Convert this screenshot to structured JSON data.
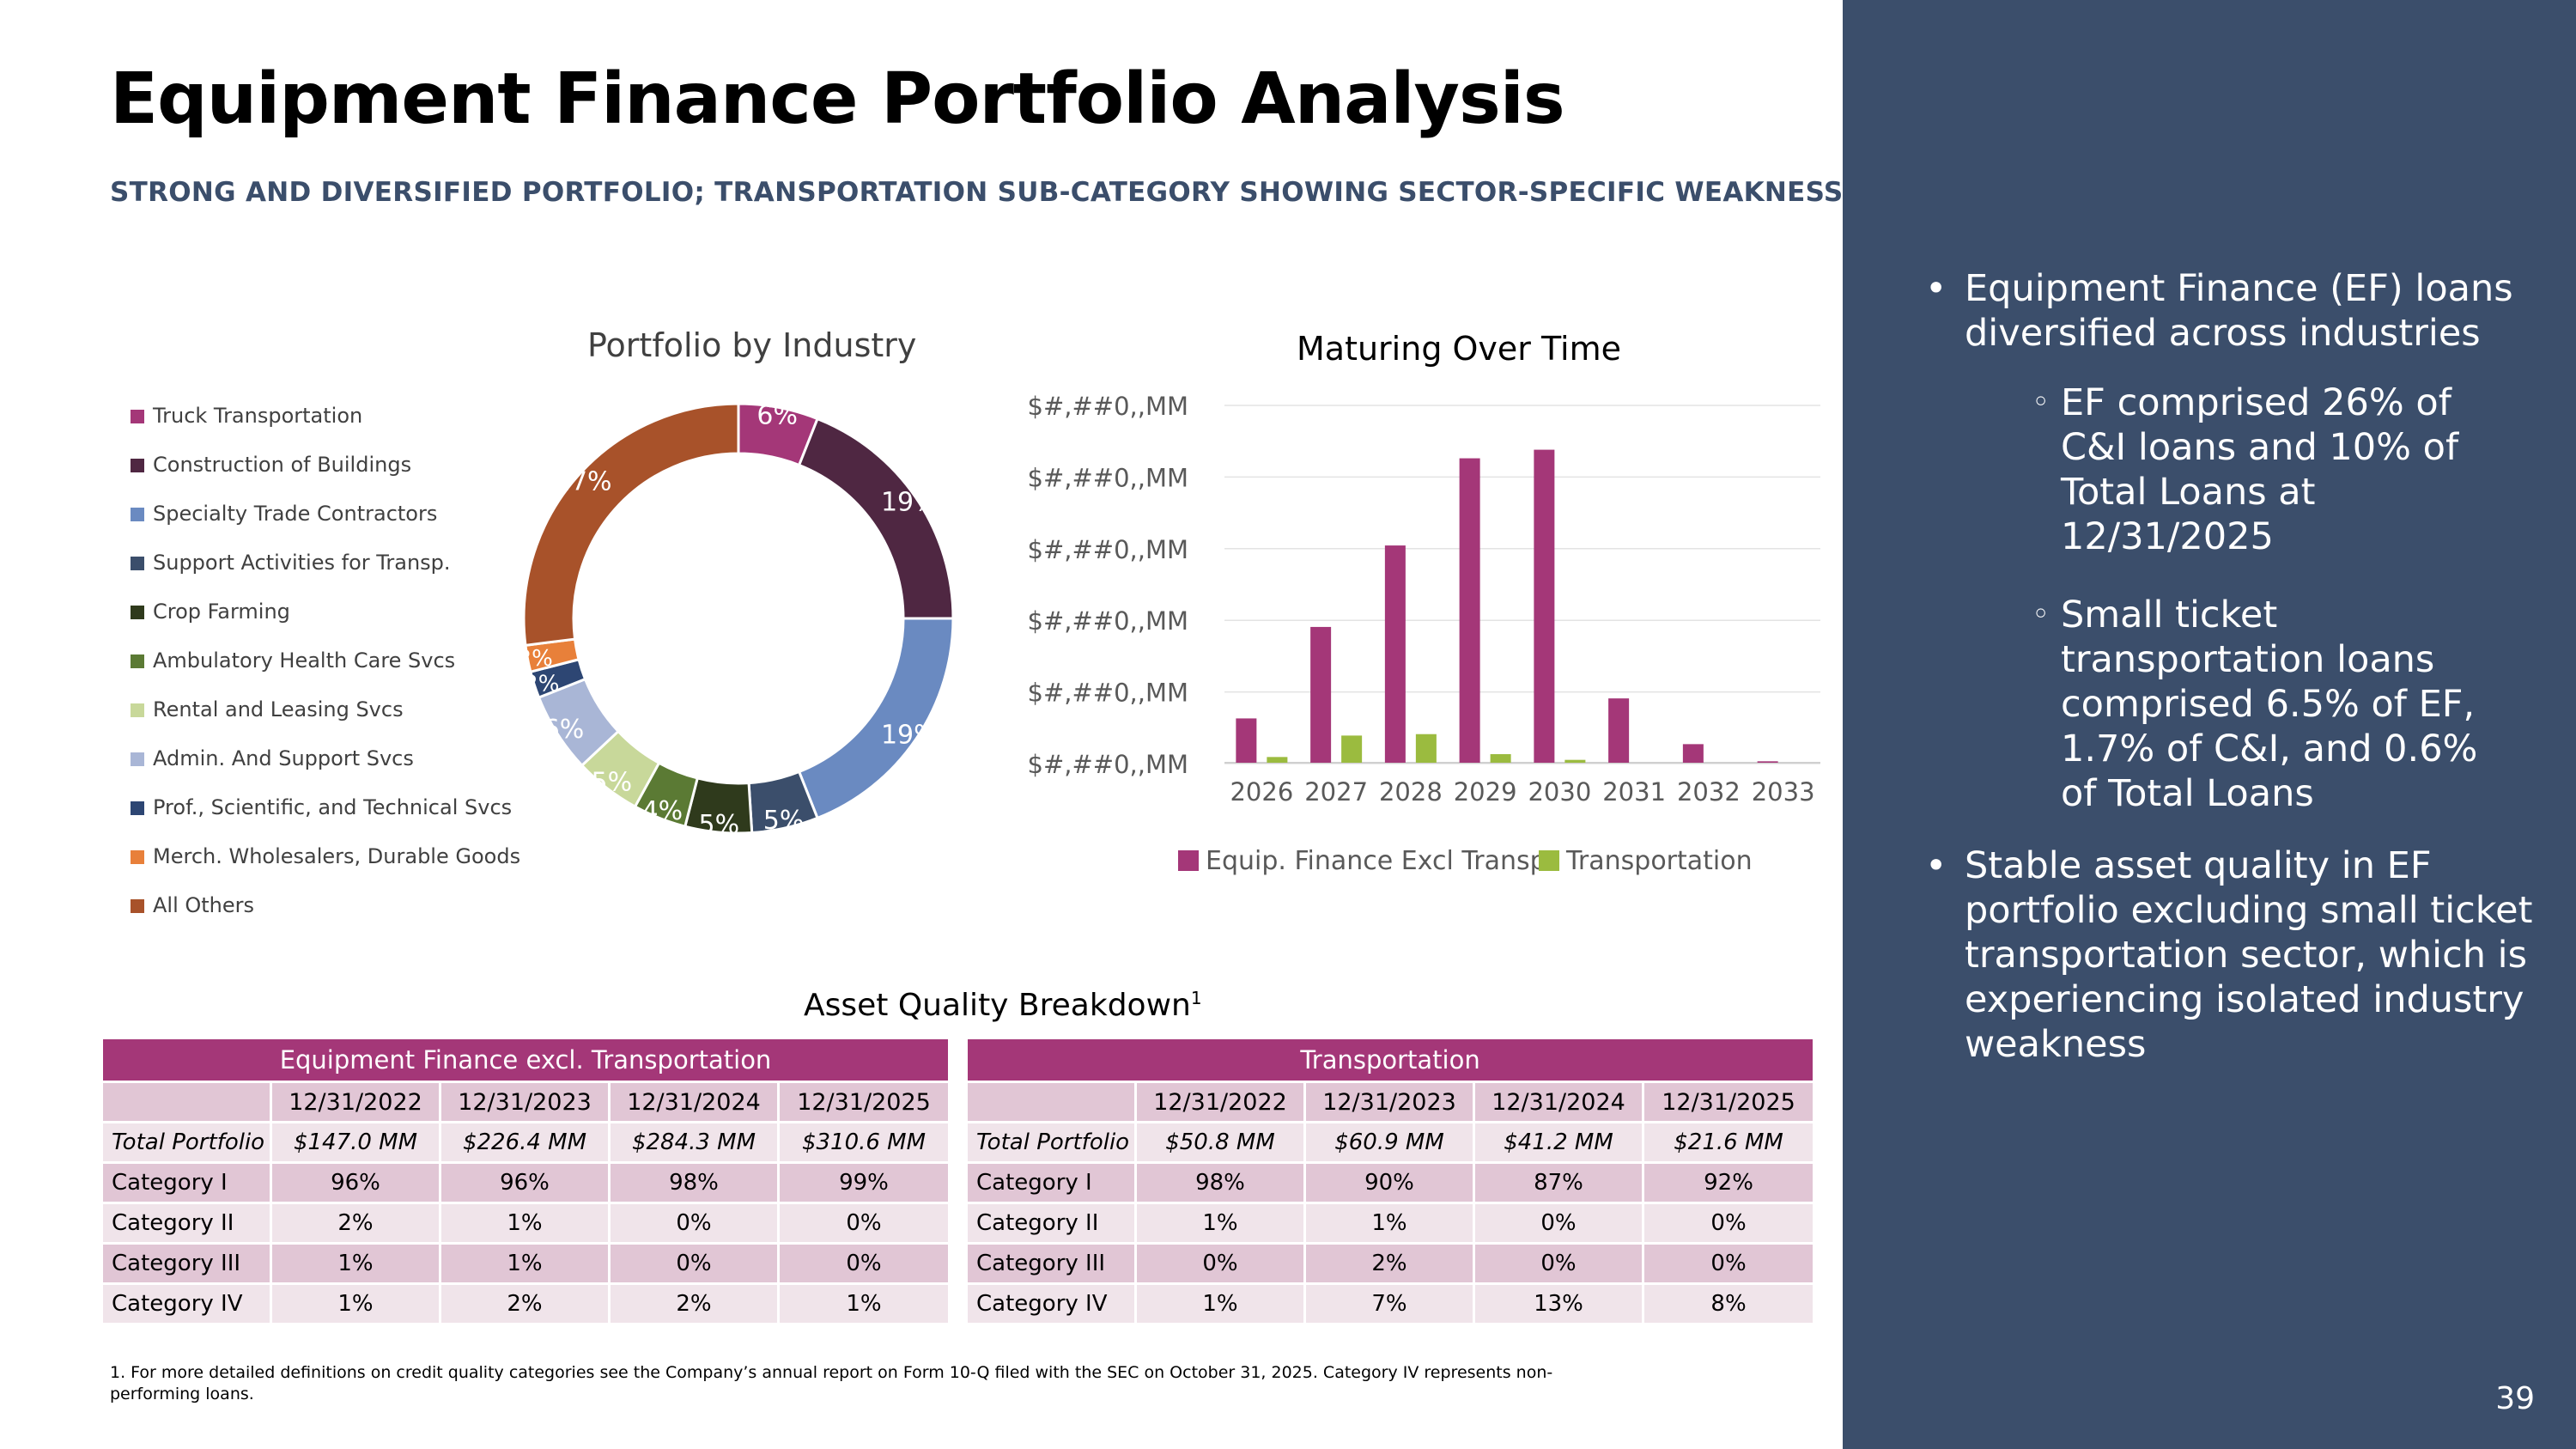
{
  "slide": {
    "title": "Equipment Finance Portfolio Analysis",
    "subtitle": "STRONG AND DIVERSIFIED PORTFOLIO; TRANSPORTATION SUB-CATEGORY SHOWING SECTOR-SPECIFIC WEAKNESS",
    "page_number": "39",
    "footnote": "1.  For more detailed definitions on credit quality categories see the Company’s annual report on Form 10-Q filed with the SEC on October 31, 2025. Category IV represents non-performing loans."
  },
  "sidebar": {
    "bullets": [
      "Equipment Finance (EF) loans diversified across industries",
      "Stable asset quality in EF portfolio excluding small ticket transportation sector, which is experiencing isolated industry weakness"
    ],
    "sub_bullets": [
      "EF comprised 26% of C&I loans and 10% of Total Loans at 12/31/2025",
      "Small ticket transportation loans comprised 6.5% of EF, 1.7% of C&I, and 0.6% of Total Loans"
    ],
    "bullet_glyph": "•",
    "sub_bullet_glyph": "◦"
  },
  "chart_data": [
    {
      "type": "pie",
      "style": "donut",
      "title": "Portfolio by Industry",
      "legend_position": "left",
      "slices": [
        {
          "label": "Truck Transportation",
          "value": 6,
          "display": "6%",
          "color": "#a43778"
        },
        {
          "label": "Construction of Buildings",
          "value": 19,
          "display": "19%",
          "color": "#4f2742"
        },
        {
          "label": "Specialty Trade Contractors",
          "value": 19,
          "display": "19%",
          "color": "#6a8ac1"
        },
        {
          "label": "Support Activities for Transp.",
          "value": 5,
          "display": "5%",
          "color": "#3b4e6b"
        },
        {
          "label": "Crop Farming",
          "value": 5,
          "display": "5%",
          "color": "#2f3a1c"
        },
        {
          "label": "Ambulatory Health Care Svcs",
          "value": 4,
          "display": "4%",
          "color": "#5b7a34"
        },
        {
          "label": "Rental and Leasing Svcs",
          "value": 5,
          "display": "5%",
          "color": "#c8d89a"
        },
        {
          "label": "Admin. And Support Svcs",
          "value": 6,
          "display": "6%",
          "color": "#a9b6d6"
        },
        {
          "label": "Prof., Scientific, and Technical Svcs",
          "value": 2,
          "display": "2%",
          "color": "#2d4673"
        },
        {
          "label": "Merch. Wholesalers, Durable Goods",
          "value": 2,
          "display": "2%",
          "color": "#e8803a"
        },
        {
          "label": "All Others",
          "value": 27,
          "display": "27%",
          "color": "#a8522a"
        }
      ]
    },
    {
      "type": "bar",
      "title": "Maturing Over Time",
      "categories": [
        "2026",
        "2027",
        "2028",
        "2029",
        "2030",
        "2031",
        "2032",
        "2033"
      ],
      "y_tick_labels": [
        "$#,##0,,MM",
        "$#,##0,,MM",
        "$#,##0,,MM",
        "$#,##0,,MM",
        "$#,##0,,MM",
        "$#,##0,,MM"
      ],
      "ylim": [
        0,
        250
      ],
      "grid": true,
      "legend_position": "bottom",
      "series": [
        {
          "name": "Equip. Finance Excl Transp.",
          "color": "#a43778",
          "values": [
            31,
            95,
            152,
            213,
            219,
            45,
            13,
            1
          ]
        },
        {
          "name": "Transportation",
          "color": "#9bbb3f",
          "values": [
            4,
            19,
            20,
            6,
            2,
            0,
            0,
            0
          ]
        }
      ]
    }
  ],
  "asset_quality": {
    "title": "Asset Quality Breakdown",
    "title_sup": "1",
    "tables": [
      {
        "header": "Equipment Finance excl. Transportation",
        "dates": [
          "12/31/2022",
          "12/31/2023",
          "12/31/2024",
          "12/31/2025"
        ],
        "rows": [
          {
            "label": "Total Portfolio",
            "values": [
              "$147.0 MM",
              "$226.4 MM",
              "$284.3 MM",
              "$310.6 MM"
            ]
          },
          {
            "label": "Category I",
            "values": [
              "96%",
              "96%",
              "98%",
              "99%"
            ]
          },
          {
            "label": "Category II",
            "values": [
              "2%",
              "1%",
              "0%",
              "0%"
            ]
          },
          {
            "label": "Category III",
            "values": [
              "1%",
              "1%",
              "0%",
              "0%"
            ]
          },
          {
            "label": "Category IV",
            "values": [
              "1%",
              "2%",
              "2%",
              "1%"
            ]
          }
        ]
      },
      {
        "header": "Transportation",
        "dates": [
          "12/31/2022",
          "12/31/2023",
          "12/31/2024",
          "12/31/2025"
        ],
        "rows": [
          {
            "label": "Total Portfolio",
            "values": [
              "$50.8 MM",
              "$60.9 MM",
              "$41.2 MM",
              "$21.6 MM"
            ]
          },
          {
            "label": "Category I",
            "values": [
              "98%",
              "90%",
              "87%",
              "92%"
            ]
          },
          {
            "label": "Category II",
            "values": [
              "1%",
              "1%",
              "0%",
              "0%"
            ]
          },
          {
            "label": "Category III",
            "values": [
              "0%",
              "2%",
              "0%",
              "0%"
            ]
          },
          {
            "label": "Category IV",
            "values": [
              "1%",
              "7%",
              "13%",
              "8%"
            ]
          }
        ]
      }
    ]
  }
}
